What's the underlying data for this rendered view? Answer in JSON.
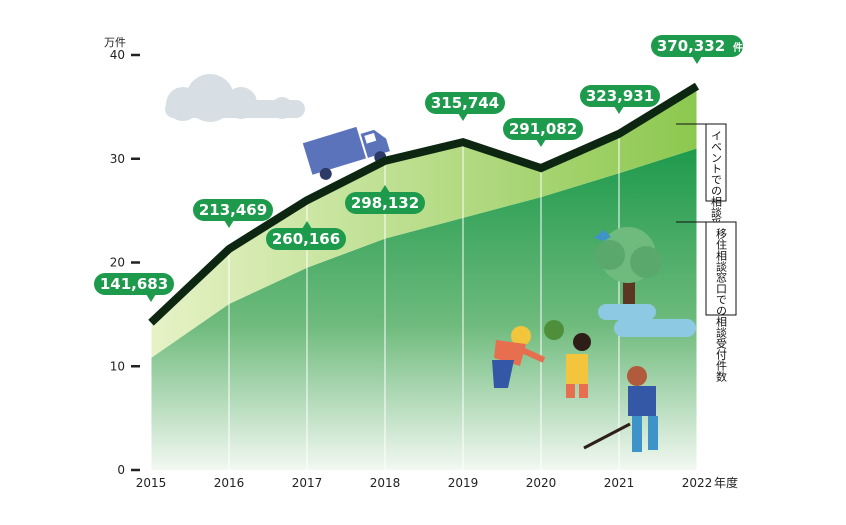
{
  "chart_data": {
    "type": "area",
    "y_unit_label": "万件",
    "x_unit_label": "年度",
    "x": [
      "2015",
      "2016",
      "2017",
      "2018",
      "2019",
      "2020",
      "2021",
      "2022"
    ],
    "yticks": [
      "0",
      "10",
      "20",
      "30",
      "40"
    ],
    "ylim": [
      0,
      40
    ],
    "total_labels": [
      "141,683",
      "213,469",
      "260,166",
      "298,132",
      "315,744",
      "291,082",
      "323,931",
      "370,332"
    ],
    "total_unit_last": "件",
    "series": [
      {
        "name": "移住相談窓口での相談受付件数",
        "values": [
          10.8,
          16.0,
          19.5,
          22.3,
          24.3,
          26.3,
          28.6,
          31.0
        ],
        "color": "#1e9a4c"
      },
      {
        "name": "イベントでの相談受付件数",
        "values": [
          3.4,
          5.3,
          6.5,
          7.5,
          7.3,
          2.8,
          3.8,
          6.0
        ],
        "color": "#8cc84f"
      }
    ],
    "totals": [
      14.2,
      21.3,
      26.0,
      29.8,
      31.6,
      29.1,
      32.4,
      37.0
    ],
    "colors": {
      "total_line": "#0c2612",
      "bubble": "#1e9a4c",
      "gridline": "#ffffff",
      "cloud": "#d7dfe5"
    }
  }
}
